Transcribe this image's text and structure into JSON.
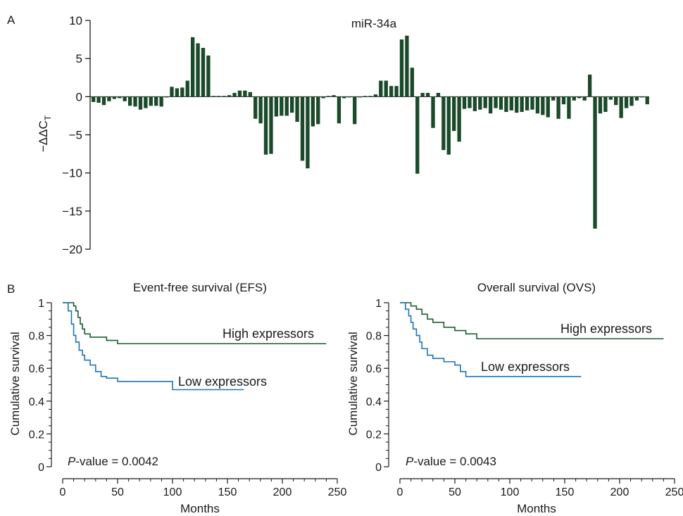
{
  "chart_data": [
    {
      "type": "bar",
      "panel": "A",
      "title": "miR-34a",
      "ylabel": "−ΔΔC",
      "ylabel_sub": "T",
      "ylim": [
        -20,
        10
      ],
      "yticks": [
        10,
        5,
        0,
        -5,
        -10,
        -15,
        -20
      ],
      "bar_color": "#1b4a2a",
      "series": [
        {
          "values": [
            -0.7,
            -0.8,
            -1.1,
            -0.6,
            -0.3,
            -0.2,
            -0.6,
            -1.2,
            -1.3,
            -1.7,
            -1.5,
            -1.2,
            -1.2,
            -1.3,
            -0.1,
            1.3,
            1.1,
            1.2,
            2.1,
            7.8,
            7.0,
            6.4,
            5.4,
            0.1,
            0.1,
            0.1,
            0.2,
            0.5,
            0.8,
            0.8,
            0.6,
            -2.9,
            -3.5,
            -7.6,
            -7.5,
            -2.6,
            -2.5,
            -2.5,
            -2.1,
            -3.3,
            -8.4,
            -9.4,
            -3.9,
            -3.6,
            -0.2,
            0.1,
            0.2,
            -3.5,
            -0.2,
            -0.1,
            -3.6,
            -0.1,
            0.1,
            0.1,
            0.3,
            2.1,
            2.1,
            1.4,
            1.4,
            7.5,
            8.0,
            3.8,
            -10.1,
            0.5,
            0.5,
            -4.1,
            0.5,
            -7.0,
            -7.6,
            -4.5,
            -5.9,
            -1.6,
            -1.5,
            -1.9,
            -1.7,
            -1.5,
            -2.2,
            -1.5,
            -1.7,
            -2.0,
            -1.8,
            -2.1,
            -2.0,
            -1.8,
            -1.7,
            -2.2,
            -2.4,
            -2.7,
            -0.5,
            -2.9,
            -1.0,
            -2.9,
            -0.5,
            -0.2,
            -0.5,
            2.9,
            -17.3,
            -2.2,
            -2.0,
            -0.4,
            -1.1,
            -2.8,
            -1.5,
            -1.2,
            -0.5,
            -0.1,
            -1.0
          ]
        }
      ]
    },
    {
      "type": "line",
      "panel": "B",
      "title": "Event-free survival (EFS)",
      "xlabel": "Months",
      "ylabel": "Cumulative survival",
      "xlim": [
        0,
        250
      ],
      "ylim": [
        0,
        1
      ],
      "xticks": [
        0,
        50,
        100,
        150,
        200,
        250
      ],
      "yticks": [
        "0",
        "0.2",
        "0.4",
        "0.6",
        "0.8",
        "1"
      ],
      "annotation_italic": "P",
      "annotation_rest": "-value = 0.0042",
      "series": [
        {
          "name": "High expressors",
          "color": "#1b5e30",
          "x": [
            0,
            10,
            12,
            14,
            16,
            18,
            20,
            25,
            40,
            50,
            240
          ],
          "y": [
            1,
            0.98,
            0.95,
            0.91,
            0.87,
            0.84,
            0.81,
            0.79,
            0.77,
            0.75,
            0.75
          ]
        },
        {
          "name": "Low expressors",
          "color": "#1f73b7",
          "x": [
            0,
            5,
            8,
            10,
            12,
            15,
            18,
            20,
            25,
            30,
            35,
            40,
            50,
            60,
            100,
            165
          ],
          "y": [
            1,
            0.95,
            0.87,
            0.8,
            0.76,
            0.71,
            0.68,
            0.65,
            0.62,
            0.58,
            0.55,
            0.54,
            0.52,
            0.52,
            0.47,
            0.47
          ]
        }
      ]
    },
    {
      "type": "line",
      "panel": "",
      "title": "Overall survival (OVS)",
      "xlabel": "Months",
      "ylabel": "Cumulative survival",
      "xlim": [
        0,
        250
      ],
      "ylim": [
        0,
        1
      ],
      "xticks": [
        0,
        50,
        100,
        150,
        200,
        250
      ],
      "yticks": [
        "0",
        "0.2",
        "0.4",
        "0.6",
        "0.8",
        "1"
      ],
      "annotation_italic": "P",
      "annotation_rest": "-value = 0.0043",
      "series": [
        {
          "name": "High expressors",
          "color": "#1b5e30",
          "x": [
            0,
            10,
            15,
            20,
            25,
            30,
            40,
            50,
            60,
            70,
            240
          ],
          "y": [
            1,
            0.98,
            0.96,
            0.93,
            0.9,
            0.88,
            0.85,
            0.83,
            0.81,
            0.78,
            0.78
          ]
        },
        {
          "name": "Low expressors",
          "color": "#1f73b7",
          "x": [
            0,
            5,
            8,
            10,
            12,
            15,
            18,
            20,
            25,
            30,
            40,
            50,
            55,
            60,
            165
          ],
          "y": [
            1,
            0.96,
            0.92,
            0.88,
            0.84,
            0.8,
            0.76,
            0.72,
            0.68,
            0.66,
            0.64,
            0.62,
            0.58,
            0.55,
            0.55
          ]
        }
      ]
    }
  ]
}
